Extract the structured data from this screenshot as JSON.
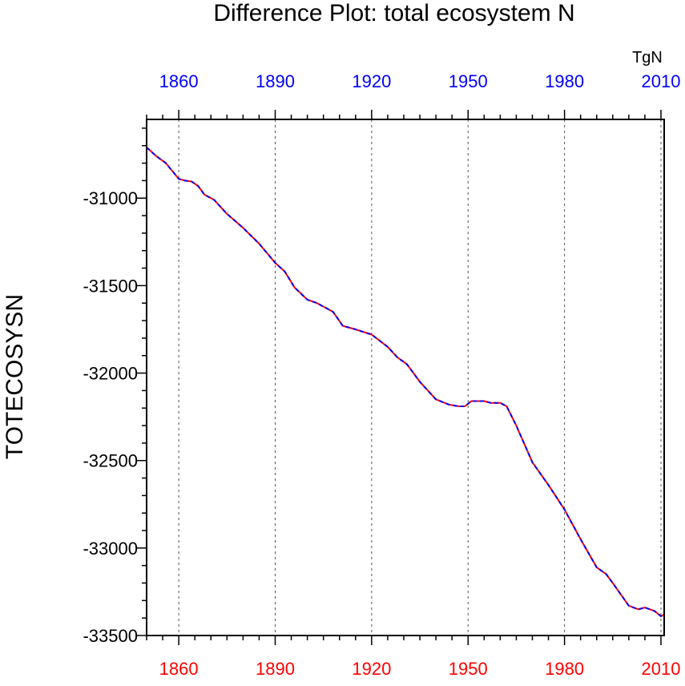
{
  "chart_data": {
    "type": "line",
    "title": "Difference Plot: total ecosystem N",
    "ylabel": "TOTECOSYSN",
    "units_label": "TgN",
    "xlim": [
      1850,
      2011
    ],
    "ylim": [
      -33500,
      -30550
    ],
    "x_ticks": [
      1860,
      1890,
      1920,
      1950,
      1980,
      2010
    ],
    "x_tick_labels": [
      "1860",
      "1890",
      "1920",
      "1950",
      "1980",
      "2010"
    ],
    "y_ticks": [
      -31000,
      -31500,
      -32000,
      -32500,
      -33000,
      -33500
    ],
    "y_tick_labels": [
      "-31000",
      "-31500",
      "-32000",
      "-32500",
      "-33000",
      "-33500"
    ],
    "grid": "vertical dashed at major x ticks",
    "colors": {
      "bottom_axis": "#ff0000",
      "top_axis": "#0000ff",
      "series_a": "#ff0000",
      "series_b": "#0000ff",
      "grid": "#555555",
      "frame": "#000000"
    },
    "series": [
      {
        "name": "red-series",
        "x": [
          1850,
          1853,
          1856,
          1860,
          1862,
          1864,
          1866,
          1868,
          1871,
          1875,
          1880,
          1885,
          1890,
          1893,
          1896,
          1900,
          1903,
          1906,
          1908,
          1911,
          1915,
          1920,
          1925,
          1928,
          1931,
          1935,
          1940,
          1944,
          1947,
          1949,
          1951,
          1955,
          1957,
          1960,
          1962,
          1965,
          1970,
          1975,
          1980,
          1985,
          1990,
          1993,
          1995,
          2000,
          2003,
          2005,
          2008,
          2010,
          2011
        ],
        "values": [
          -30710,
          -30760,
          -30800,
          -30890,
          -30900,
          -30905,
          -30930,
          -30980,
          -31010,
          -31090,
          -31170,
          -31260,
          -31370,
          -31420,
          -31510,
          -31580,
          -31600,
          -31630,
          -31650,
          -31730,
          -31750,
          -31780,
          -31850,
          -31910,
          -31950,
          -32050,
          -32150,
          -32180,
          -32190,
          -32190,
          -32160,
          -32160,
          -32170,
          -32170,
          -32190,
          -32300,
          -32510,
          -32640,
          -32780,
          -32950,
          -33110,
          -33150,
          -33200,
          -33330,
          -33350,
          -33340,
          -33360,
          -33390,
          -33380
        ]
      },
      {
        "name": "blue-series",
        "x": [
          1850,
          1853,
          1856,
          1860,
          1862,
          1864,
          1866,
          1868,
          1871,
          1875,
          1880,
          1885,
          1890,
          1893,
          1896,
          1900,
          1903,
          1906,
          1908,
          1911,
          1915,
          1920,
          1925,
          1928,
          1931,
          1935,
          1940,
          1944,
          1947,
          1949,
          1951,
          1955,
          1957,
          1960,
          1962,
          1965,
          1970,
          1975,
          1980,
          1985,
          1990,
          1993,
          1995,
          2000,
          2003,
          2005,
          2008,
          2010,
          2011
        ],
        "values": [
          -30710,
          -30760,
          -30800,
          -30890,
          -30900,
          -30905,
          -30930,
          -30980,
          -31010,
          -31090,
          -31170,
          -31260,
          -31370,
          -31420,
          -31510,
          -31580,
          -31600,
          -31630,
          -31650,
          -31730,
          -31750,
          -31780,
          -31850,
          -31910,
          -31950,
          -32050,
          -32150,
          -32180,
          -32190,
          -32190,
          -32160,
          -32160,
          -32170,
          -32170,
          -32190,
          -32300,
          -32510,
          -32640,
          -32780,
          -32950,
          -33110,
          -33150,
          -33200,
          -33330,
          -33350,
          -33340,
          -33360,
          -33390,
          -33380
        ]
      }
    ]
  }
}
